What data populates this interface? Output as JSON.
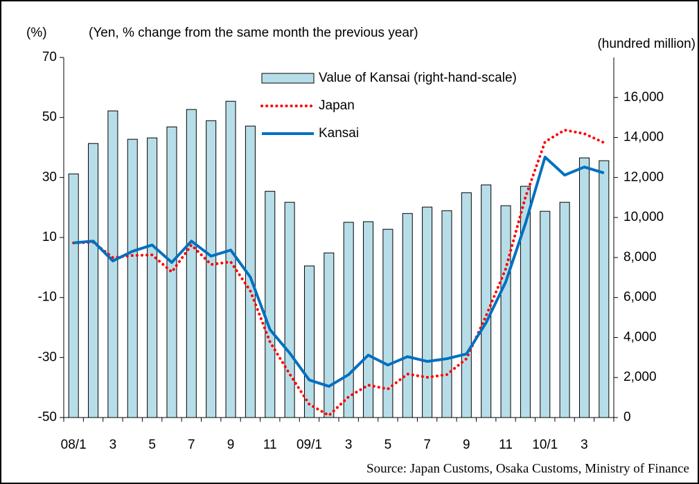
{
  "chart_data": {
    "type": "bar",
    "title": "(Yen, % change from the same month the previous year)",
    "y_label": "(%)",
    "y2_label": "(hundred million)",
    "source": "Source: Japan Customs, Osaka Customs, Ministry of Finance",
    "categories": [
      "08/1",
      null,
      "3",
      null,
      "5",
      null,
      "7",
      null,
      "9",
      null,
      "11",
      null,
      "09/1",
      null,
      "3",
      null,
      "5",
      null,
      "7",
      null,
      "9",
      null,
      "11",
      null,
      "10/1",
      null,
      "3",
      null
    ],
    "series": [
      {
        "name": "Value of Kansai (right-hand-scale)",
        "type": "bar",
        "axis": "y2",
        "color": "#b7dee8",
        "values": [
          12180,
          13700,
          15330,
          13910,
          13980,
          14530,
          15400,
          14840,
          15810,
          14570,
          11310,
          10760,
          7580,
          8230,
          9760,
          9790,
          9410,
          10200,
          10520,
          10340,
          11240,
          11630,
          10590,
          11560,
          10310,
          10760,
          12980,
          12840
        ]
      },
      {
        "name": "Japan",
        "type": "line",
        "style": "dotted",
        "color": "#ff0000",
        "values": [
          8.2,
          8.4,
          3.3,
          4.0,
          4.2,
          -1.5,
          7.5,
          1.0,
          1.9,
          -7.8,
          -24.8,
          -35.5,
          -45.6,
          -49.3,
          -43.1,
          -39.2,
          -40.5,
          -35.5,
          -36.6,
          -35.7,
          -30.4,
          -16.1,
          -0.4,
          23.4,
          41.9,
          45.8,
          44.6,
          41.6
        ]
      },
      {
        "name": "Kansai",
        "type": "line",
        "style": "solid",
        "color": "#0070c0",
        "values": [
          8.2,
          8.8,
          2.2,
          5.4,
          7.5,
          1.7,
          8.8,
          3.8,
          5.8,
          -3.2,
          -20.7,
          -28.5,
          -37.5,
          -39.6,
          -35.7,
          -29.2,
          -32.5,
          -29.7,
          -31.3,
          -30.4,
          -28.8,
          -18.4,
          -4.8,
          14.6,
          36.8,
          30.8,
          33.5,
          31.5
        ]
      }
    ],
    "ylim": [
      -50,
      70
    ],
    "yticks": [
      -50,
      -30,
      -10,
      10,
      30,
      50,
      70
    ],
    "y2lim": [
      0,
      18000
    ],
    "y2ticks": [
      0,
      {
        "value": 2000,
        "label": "2,000"
      },
      {
        "value": 4000,
        "label": "4,000"
      },
      {
        "value": 6000,
        "label": "6,000"
      },
      {
        "value": 8000,
        "label": "8,000"
      },
      {
        "value": 10000,
        "label": "10,000"
      },
      {
        "value": 12000,
        "label": "12,000"
      },
      {
        "value": 14000,
        "label": "14,000"
      },
      {
        "value": 16000,
        "label": "16,000"
      }
    ],
    "grid": false,
    "legend": "top-right"
  }
}
